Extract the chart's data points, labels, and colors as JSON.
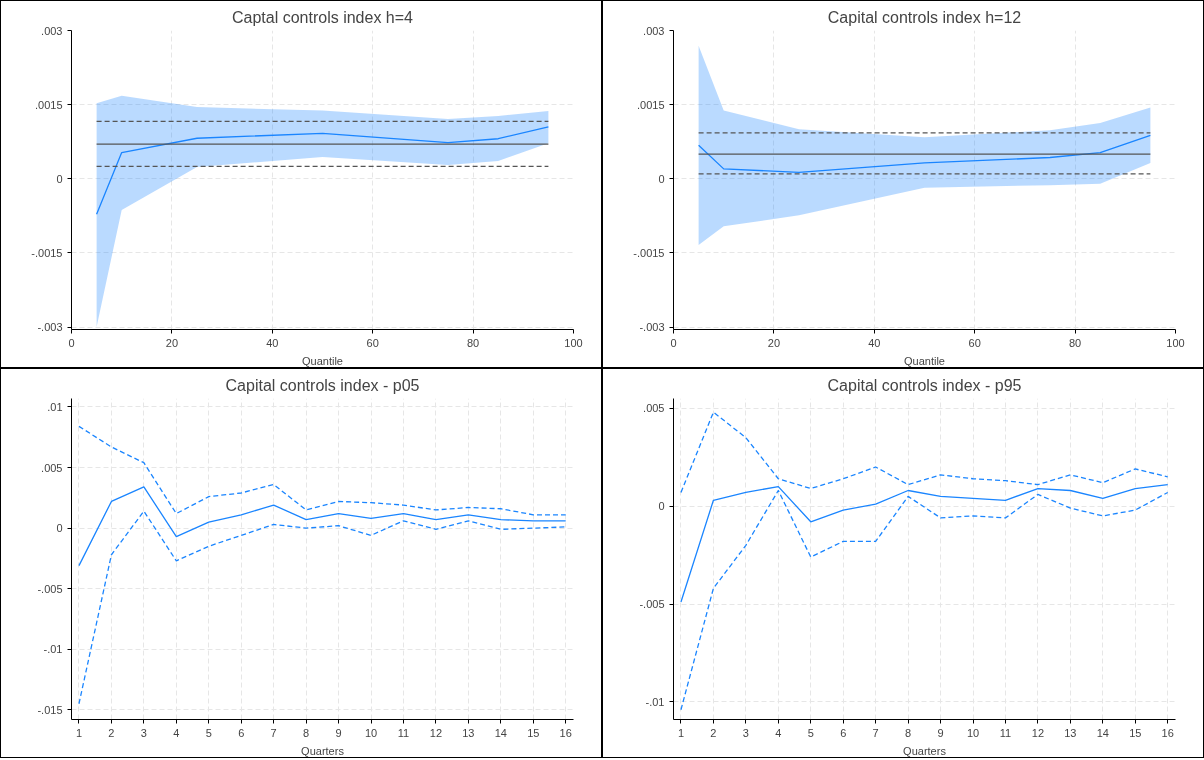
{
  "chart_data": [
    {
      "type": "line",
      "title": "Captal controls index h=4",
      "xlabel": "Quantile",
      "x": [
        5,
        10,
        25,
        50,
        75,
        85,
        95
      ],
      "xlim": [
        0,
        100
      ],
      "xticks": [
        0,
        20,
        40,
        60,
        80,
        100
      ],
      "ylim": [
        -0.00305,
        0.003
      ],
      "yticks": [
        {
          "value": -0.003,
          "label": "-.003"
        },
        {
          "value": -0.0015,
          "label": "-.0015"
        },
        0,
        {
          "value": 0.0015,
          "label": ".0015"
        },
        {
          "value": 0.003,
          "label": ".003"
        }
      ],
      "grid": true,
      "series": [
        {
          "color": "#1a85ff",
          "values": [
            -0.00072,
            0.00053,
            0.00082,
            0.00092,
            0.00073,
            0.00081,
            0.00105
          ],
          "lower": [
            -0.003,
            -0.00063,
            0.00024,
            0.00044,
            0.00028,
            0.00036,
            0.00072
          ],
          "upper": [
            0.00153,
            0.00168,
            0.00145,
            0.00138,
            0.00121,
            0.00127,
            0.00137
          ]
        },
        {
          "color": "#555555",
          "values": [
            0.0007,
            0.0007,
            0.0007,
            0.0007,
            0.0007,
            0.0007,
            0.0007
          ],
          "line_style": "solid"
        },
        {
          "color": "#555555",
          "values": [
            0.00116,
            0.00116,
            0.00116,
            0.00116,
            0.00116,
            0.00116,
            0.00116
          ],
          "line_style": "dashed"
        },
        {
          "color": "#555555",
          "values": [
            0.00025,
            0.00025,
            0.00025,
            0.00025,
            0.00025,
            0.00025,
            0.00025
          ],
          "line_style": "dashed"
        }
      ]
    },
    {
      "type": "line",
      "title": "Capital controls index h=12",
      "xlabel": "Quantile",
      "x": [
        5,
        10,
        25,
        50,
        75,
        85,
        95
      ],
      "xlim": [
        0,
        100
      ],
      "xticks": [
        0,
        20,
        40,
        60,
        80,
        100
      ],
      "ylim": [
        -0.00305,
        0.003
      ],
      "yticks": [
        {
          "value": -0.003,
          "label": "-.003"
        },
        {
          "value": -0.0015,
          "label": "-.0015"
        },
        0,
        {
          "value": 0.0015,
          "label": ".0015"
        },
        {
          "value": 0.003,
          "label": ".003"
        }
      ],
      "grid": true,
      "series": [
        {
          "color": "#1a85ff",
          "values": [
            0.00068,
            0.0002,
            0.00013,
            0.00032,
            0.00043,
            0.00053,
            0.00088
          ],
          "lower": [
            -0.00134,
            -0.00096,
            -0.00074,
            -0.00018,
            -0.00013,
            -0.0001,
            0.00032
          ],
          "upper": [
            0.00269,
            0.00138,
            0.001,
            0.00084,
            0.00098,
            0.00113,
            0.00144
          ]
        },
        {
          "color": "#555555",
          "values": [
            0.0005,
            0.0005,
            0.0005,
            0.0005,
            0.0005,
            0.0005,
            0.0005
          ],
          "line_style": "solid"
        },
        {
          "color": "#555555",
          "values": [
            0.00093,
            0.00093,
            0.00093,
            0.00093,
            0.00093,
            0.00093,
            0.00093
          ],
          "line_style": "dashed"
        },
        {
          "color": "#555555",
          "values": [
            0.0001,
            0.0001,
            0.0001,
            0.0001,
            0.0001,
            0.0001,
            0.0001
          ],
          "line_style": "dashed"
        }
      ]
    },
    {
      "type": "line",
      "title": "Capital controls index - p05",
      "xlabel": "Quarters",
      "x": [
        1,
        2,
        3,
        4,
        5,
        6,
        7,
        8,
        9,
        10,
        11,
        12,
        13,
        14,
        15,
        16
      ],
      "xlim": [
        0.77,
        16.24
      ],
      "xticks": [
        1,
        2,
        3,
        4,
        5,
        6,
        7,
        8,
        9,
        10,
        11,
        12,
        13,
        14,
        15,
        16
      ],
      "ylim": [
        -0.0158,
        0.0107
      ],
      "yticks": [
        {
          "value": -0.015,
          "label": "-.015"
        },
        {
          "value": -0.01,
          "label": "-.01"
        },
        {
          "value": -0.005,
          "label": "-.005"
        },
        0,
        {
          "value": 0.005,
          "label": ".005"
        },
        {
          "value": 0.01,
          "label": ".01"
        }
      ],
      "grid": true,
      "series": [
        {
          "color": "#1a85ff",
          "line_style": "solid",
          "values": [
            -0.0031,
            0.0022,
            0.0034,
            -0.0007,
            0.0005,
            0.0011,
            0.0019,
            0.0007,
            0.0012,
            0.0008,
            0.0012,
            0.0007,
            0.0011,
            0.0007,
            0.0006,
            0.0006
          ]
        },
        {
          "color": "#1a85ff",
          "line_style": "dashed",
          "values": [
            0.0084,
            0.0067,
            0.0054,
            0.0012,
            0.0026,
            0.0029,
            0.0036,
            0.0015,
            0.0022,
            0.0021,
            0.0019,
            0.0015,
            0.0017,
            0.0016,
            0.0011,
            0.0011
          ]
        },
        {
          "color": "#1a85ff",
          "line_style": "dashed",
          "values": [
            -0.0145,
            -0.0022,
            0.0014,
            -0.0027,
            -0.0015,
            -0.0006,
            0.0003,
            0.0,
            0.0002,
            -0.0006,
            0.0006,
            -0.0001,
            0.0006,
            -0.0001,
            0.0,
            0.0001
          ]
        }
      ]
    },
    {
      "type": "line",
      "title": "Capital controls index - p95",
      "xlabel": "Quarters",
      "x": [
        1,
        2,
        3,
        4,
        5,
        6,
        7,
        8,
        9,
        10,
        11,
        12,
        13,
        14,
        15,
        16
      ],
      "xlim": [
        0.77,
        16.24
      ],
      "xticks": [
        1,
        2,
        3,
        4,
        5,
        6,
        7,
        8,
        9,
        10,
        11,
        12,
        13,
        14,
        15,
        16
      ],
      "ylim": [
        -0.0109,
        0.0055
      ],
      "yticks": [
        {
          "value": -0.01,
          "label": "-.01"
        },
        {
          "value": -0.005,
          "label": "-.005"
        },
        0,
        {
          "value": 0.005,
          "label": ".005"
        }
      ],
      "grid": true,
      "series": [
        {
          "color": "#1a85ff",
          "line_style": "solid",
          "values": [
            -0.0049,
            0.0003,
            0.0007,
            0.001,
            -0.0008,
            -0.0002,
            0.0001,
            0.0008,
            0.0005,
            0.0004,
            0.0003,
            0.0009,
            0.0008,
            0.0004,
            0.0009,
            0.0011
          ]
        },
        {
          "color": "#1a85ff",
          "line_style": "dashed",
          "values": [
            0.0007,
            0.0048,
            0.0035,
            0.0014,
            0.0009,
            0.0014,
            0.002,
            0.0011,
            0.0016,
            0.0014,
            0.0013,
            0.0011,
            0.0016,
            0.0012,
            0.0019,
            0.0015
          ]
        },
        {
          "color": "#1a85ff",
          "line_style": "dashed",
          "values": [
            -0.0104,
            -0.0042,
            -0.002,
            0.0008,
            -0.0026,
            -0.0018,
            -0.0018,
            0.0005,
            -0.0006,
            -0.0005,
            -0.0006,
            0.0006,
            -0.0001,
            -0.0005,
            -0.0002,
            0.0007
          ]
        }
      ]
    }
  ]
}
